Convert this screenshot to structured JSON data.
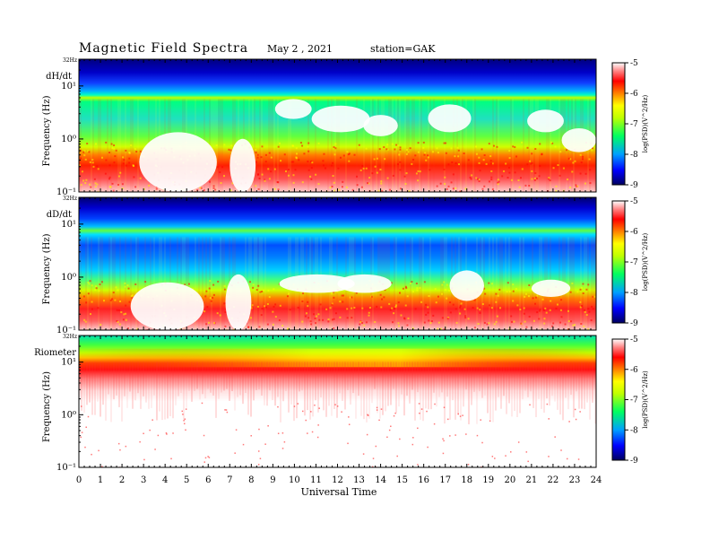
{
  "header": {
    "title": "Magnetic  Field  Spectra",
    "date": "May 2  , 2021",
    "station": "station=GAK"
  },
  "chart_data": [
    {
      "type": "heatmap",
      "panel_label": "dH/dt",
      "ylabel": "Frequency (Hz)",
      "y_scale": "log",
      "ylim": [
        0.1,
        32
      ],
      "yticks": [
        "10¹",
        "10⁰",
        "10⁻¹"
      ],
      "ytop_label": "32Hz",
      "xlim": [
        0,
        24
      ],
      "colorbar": {
        "ticks": [
          "-5",
          "-6",
          "-7",
          "-8",
          "-9"
        ],
        "label": "log(PSD)(V^2/Hz)"
      }
    },
    {
      "type": "heatmap",
      "panel_label": "dD/dt",
      "ylabel": "Frequency (Hz)",
      "y_scale": "log",
      "ylim": [
        0.1,
        32
      ],
      "yticks": [
        "10¹",
        "10⁰",
        "10⁻¹"
      ],
      "ytop_label": "32Hz",
      "xlim": [
        0,
        24
      ],
      "colorbar": {
        "ticks": [
          "-5",
          "-6",
          "-7",
          "-8",
          "-9"
        ],
        "label": "log(PSD)(V^2/Hz)"
      }
    },
    {
      "type": "heatmap",
      "panel_label": "Riometer",
      "ylabel": "Frequency (Hz)",
      "y_scale": "log",
      "ylim": [
        0.1,
        32
      ],
      "yticks": [
        "10¹",
        "10⁰",
        "10⁻¹"
      ],
      "ytop_label": "32Hz",
      "xlim": [
        0,
        24
      ],
      "colorbar": {
        "ticks": [
          "-5",
          "-6",
          "-7",
          "-8",
          "-9"
        ],
        "label": "log(PSD)(V^2/Hz)"
      }
    }
  ],
  "x_axis": {
    "xlabel": "Universal Time",
    "ticks": [
      "0",
      "1",
      "2",
      "3",
      "4",
      "5",
      "6",
      "7",
      "8",
      "9",
      "10",
      "11",
      "12",
      "13",
      "14",
      "15",
      "16",
      "17",
      "18",
      "19",
      "20",
      "21",
      "22",
      "23",
      "24"
    ]
  }
}
